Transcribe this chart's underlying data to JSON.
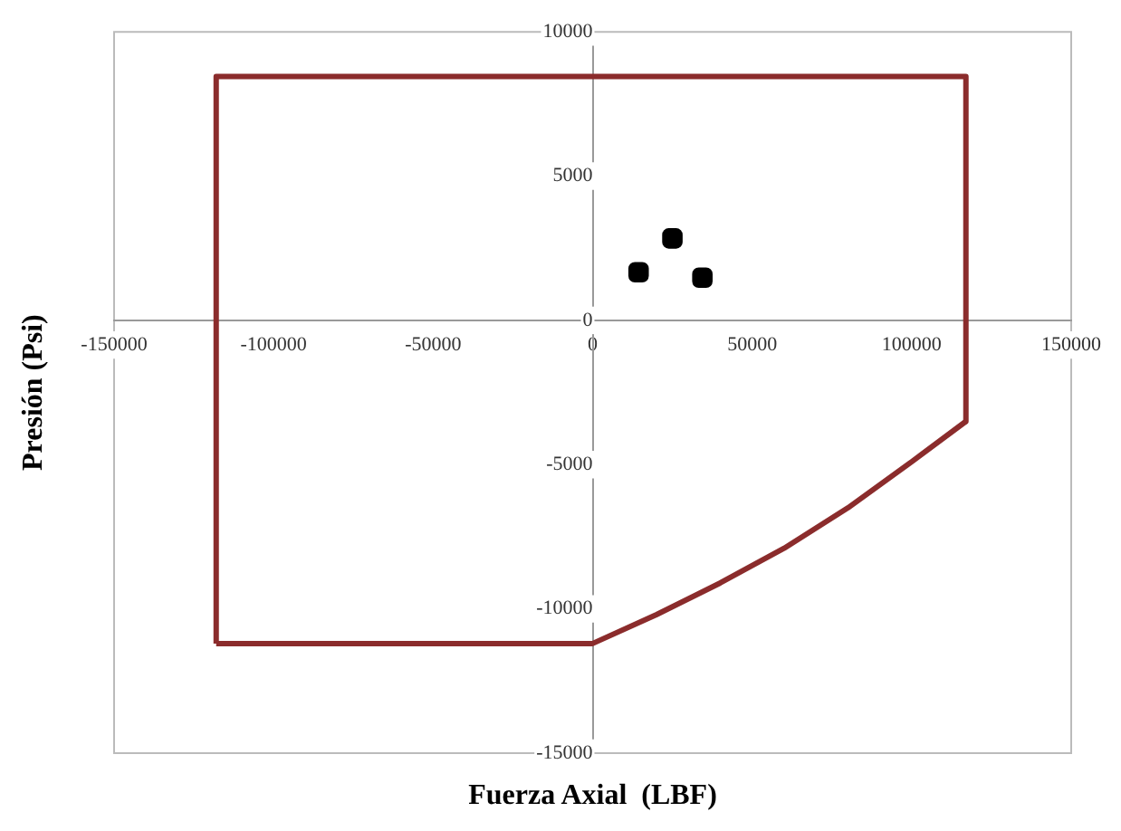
{
  "chart_data": {
    "type": "line",
    "xlabel": "Fuerza Axial  (LBF)",
    "ylabel": "Presión (Psi)",
    "xlim": [
      -150000,
      150000
    ],
    "xticks": [
      -150000,
      -100000,
      -50000,
      0,
      50000,
      100000,
      150000
    ],
    "ylim": [
      -15000,
      10000
    ],
    "yticks": [
      -15000,
      -10000,
      -5000,
      0,
      5000,
      10000
    ],
    "grid": false,
    "legend": false,
    "series": [
      {
        "type": "line",
        "color": "#8b2c2c",
        "marker": "none",
        "x": [
          -118000,
          -118000,
          117000,
          117000
        ],
        "values": [
          -11200,
          8450,
          8450,
          -3500
        ]
      },
      {
        "type": "line",
        "color": "#8b2c2c",
        "marker": "none",
        "x": [
          -118000,
          0,
          20000,
          40000,
          60000,
          80000,
          100000,
          117000
        ],
        "values": [
          -11200,
          -11200,
          -10200,
          -9100,
          -7900,
          -6500,
          -4900,
          -3500
        ]
      },
      {
        "type": "scatter",
        "color": "#000000",
        "marker": "square",
        "x": [
          14400,
          25000,
          34400
        ],
        "values": [
          1670,
          2840,
          1480
        ]
      }
    ]
  }
}
